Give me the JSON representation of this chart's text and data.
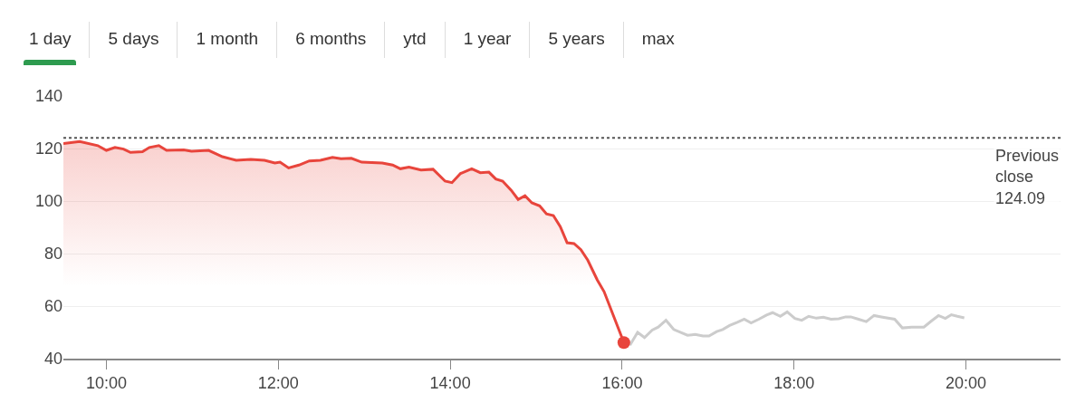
{
  "chart_data": {
    "type": "line",
    "annotations": [
      "1 day",
      "5 days",
      "1 month",
      "6 months",
      "ytd",
      "1 year",
      "5 years",
      "max"
    ],
    "xlim": [
      9.5,
      21.1
    ],
    "xticks": [
      {
        "value": 10,
        "label": "10:00"
      },
      {
        "value": 12,
        "label": "12:00"
      },
      {
        "value": 14,
        "label": "14:00"
      },
      {
        "value": 16,
        "label": "16:00"
      },
      {
        "value": 18,
        "label": "18:00"
      },
      {
        "value": 20,
        "label": "20:00"
      }
    ],
    "ylim": [
      40,
      140
    ],
    "yticks": [
      40,
      60,
      80,
      100,
      120,
      140
    ],
    "grid": "y",
    "ref_lines": [
      {
        "axis": "y",
        "value": 124.09,
        "label": "Previous close 124.09",
        "color": "#555555",
        "line_style": "dotted"
      }
    ],
    "series": [
      {
        "type": "area",
        "color": "#e8453c",
        "x": [
          9.5,
          9.69,
          9.9,
          10.0,
          10.1,
          10.2,
          10.28,
          10.42,
          10.5,
          10.61,
          10.7,
          10.9,
          10.99,
          11.19,
          11.35,
          11.51,
          11.68,
          11.84,
          11.96,
          12.02,
          12.12,
          12.24,
          12.36,
          12.49,
          12.63,
          12.73,
          12.85,
          12.97,
          13.21,
          13.33,
          13.42,
          13.52,
          13.66,
          13.8,
          13.94,
          14.02,
          14.12,
          14.25,
          14.35,
          14.45,
          14.53,
          14.61,
          14.71,
          14.79,
          14.87,
          14.95,
          15.04,
          15.12,
          15.2,
          15.28,
          15.36,
          15.44,
          15.52,
          15.6,
          15.71,
          15.79,
          16.02
        ],
        "values": [
          121.9,
          122.7,
          121.1,
          119.3,
          120.4,
          119.8,
          118.5,
          118.8,
          120.4,
          121.1,
          119.3,
          119.5,
          119,
          119.3,
          116.9,
          115.5,
          115.9,
          115.5,
          114.5,
          114.8,
          112.6,
          113.7,
          115.3,
          115.5,
          116.6,
          116.1,
          116.3,
          114.8,
          114.5,
          113.7,
          112.3,
          112.9,
          111.8,
          112.1,
          107.6,
          107,
          110.5,
          112.3,
          110.8,
          111,
          108.4,
          107.6,
          104.1,
          100.6,
          102,
          99.3,
          98.2,
          95.1,
          94.5,
          90.3,
          84.1,
          83.8,
          81.5,
          77.5,
          70,
          65.5,
          46.1
        ]
      },
      {
        "type": "line",
        "color": "#cccccc",
        "x": [
          16.09,
          16.18,
          16.26,
          16.35,
          16.42,
          16.51,
          16.6,
          16.76,
          16.85,
          16.94,
          17.01,
          17.1,
          17.17,
          17.25,
          17.34,
          17.42,
          17.5,
          17.59,
          17.68,
          17.75,
          17.84,
          17.92,
          18.01,
          18.09,
          18.17,
          18.26,
          18.34,
          18.43,
          18.52,
          18.6,
          18.66,
          18.75,
          18.84,
          18.93,
          19.03,
          19.17,
          19.26,
          19.37,
          19.51,
          19.6,
          19.68,
          19.76,
          19.83,
          19.9,
          19.98
        ],
        "values": [
          45.1,
          50,
          48,
          50.9,
          52,
          54.6,
          51.1,
          48.9,
          49.2,
          48.6,
          48.6,
          50.3,
          51.1,
          52.6,
          53.8,
          55,
          53.6,
          55,
          56.6,
          57.5,
          56.1,
          57.8,
          55.3,
          54.6,
          56.1,
          55.4,
          55.8,
          55,
          55.2,
          55.9,
          55.9,
          55,
          54.1,
          56.4,
          55.8,
          55,
          51.7,
          52,
          52,
          54.4,
          56.4,
          55.3,
          56.7,
          56.1,
          55.5
        ]
      },
      {
        "type": "scatter",
        "color": "#e8453c",
        "x": [
          16.02
        ],
        "values": [
          46.1
        ]
      }
    ]
  }
}
